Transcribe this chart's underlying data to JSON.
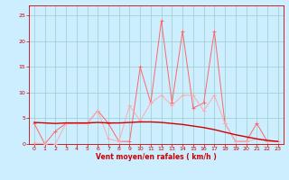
{
  "x": [
    0,
    1,
    2,
    3,
    4,
    5,
    6,
    7,
    8,
    9,
    10,
    11,
    12,
    13,
    14,
    15,
    16,
    17,
    18,
    19,
    20,
    21,
    22,
    23
  ],
  "line_gust_y": [
    4.0,
    0.0,
    2.5,
    4.0,
    4.0,
    4.0,
    6.5,
    4.0,
    0.5,
    0.5,
    15.0,
    8.0,
    24.0,
    8.0,
    22.0,
    7.0,
    8.0,
    22.0,
    4.0,
    0.5,
    0.5,
    4.0,
    0.5,
    0.5
  ],
  "line_mean_y": [
    0.2,
    0.0,
    0.0,
    4.0,
    4.0,
    4.0,
    6.5,
    1.0,
    0.5,
    7.5,
    4.5,
    8.0,
    9.5,
    7.5,
    9.5,
    9.5,
    6.5,
    9.5,
    4.0,
    0.5,
    0.5,
    1.0,
    0.5,
    0.5
  ],
  "regression_y": [
    4.2,
    4.1,
    4.0,
    4.1,
    4.1,
    4.1,
    4.2,
    4.1,
    4.1,
    4.2,
    4.3,
    4.3,
    4.2,
    4.0,
    3.8,
    3.5,
    3.2,
    2.8,
    2.3,
    1.8,
    1.4,
    1.0,
    0.7,
    0.5
  ],
  "line_gust_color": "#ff6666",
  "line_mean_color": "#ffaaaa",
  "regression_color": "#cc0000",
  "bg_color": "#cceeff",
  "grid_color": "#99cccc",
  "axis_color": "#cc0000",
  "tick_color": "#cc0000",
  "xlabel": "Vent moyen/en rafales ( km/h )",
  "ylim": [
    0,
    27
  ],
  "xlim": [
    -0.5,
    23.5
  ],
  "yticks": [
    0,
    5,
    10,
    15,
    20,
    25
  ],
  "xticks": [
    0,
    1,
    2,
    3,
    4,
    5,
    6,
    7,
    8,
    9,
    10,
    11,
    12,
    13,
    14,
    15,
    16,
    17,
    18,
    19,
    20,
    21,
    22,
    23
  ]
}
